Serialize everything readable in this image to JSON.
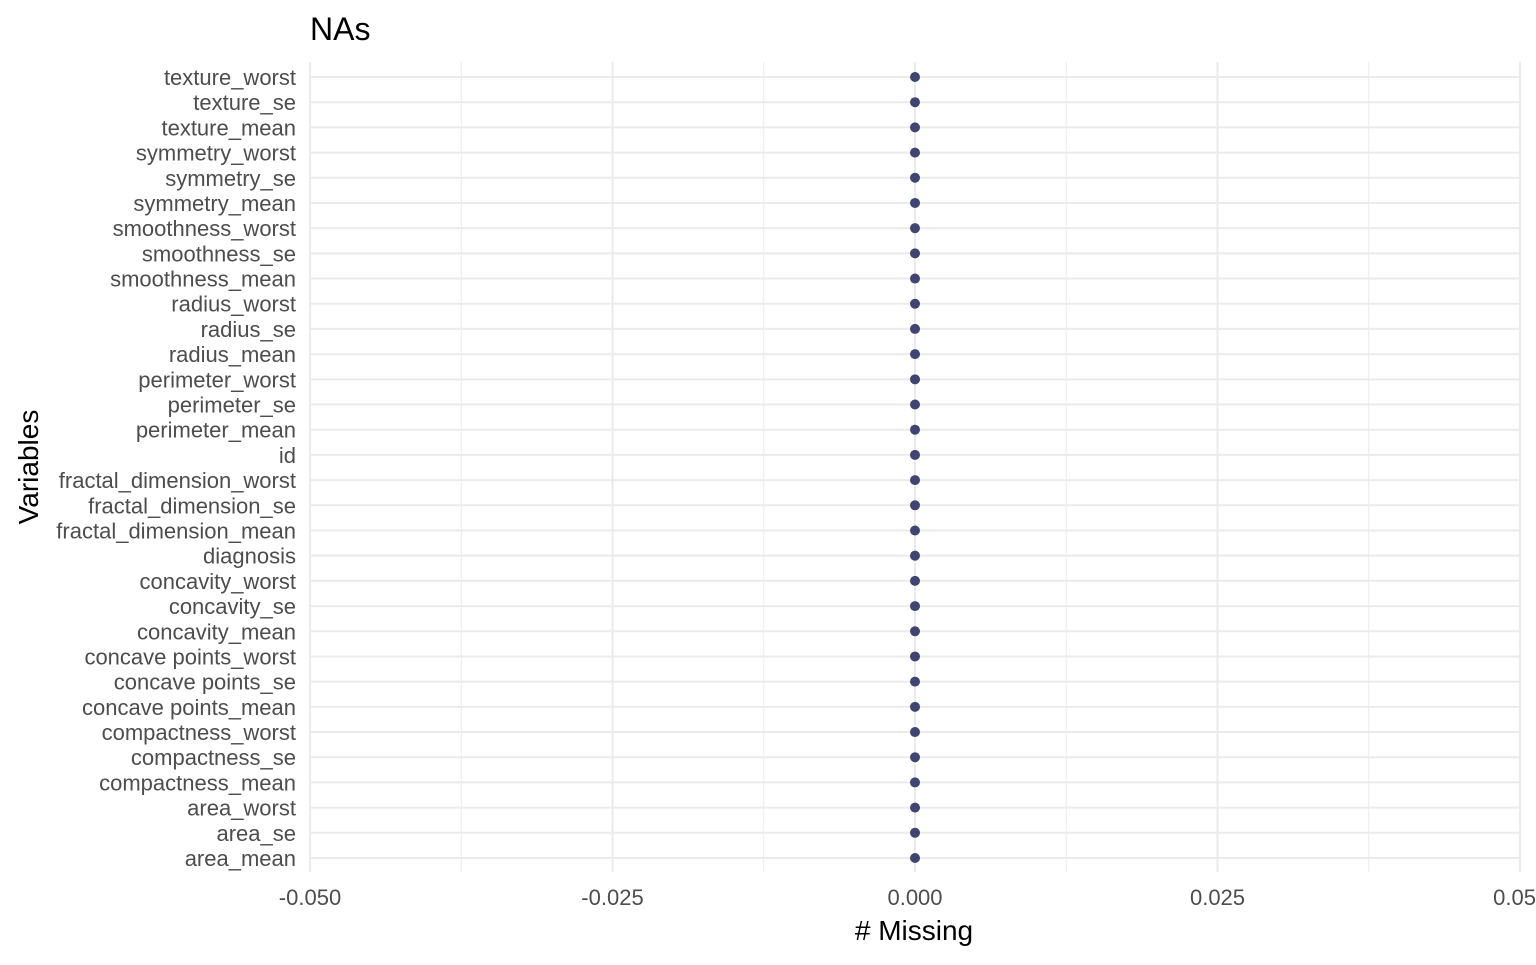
{
  "chart_data": {
    "type": "scatter",
    "title": "NAs",
    "xlabel": "# Missing",
    "ylabel": "Variables",
    "xlim": [
      -0.05,
      0.05
    ],
    "x_ticks": [
      -0.05,
      -0.025,
      0.0,
      0.025,
      0.05
    ],
    "x_tick_labels": [
      "-0.050",
      "-0.025",
      "0.000",
      "0.025",
      "0.05"
    ],
    "grid": true,
    "legend": "none",
    "point_color": "#3f4470",
    "categories": [
      "area_mean",
      "area_se",
      "area_worst",
      "compactness_mean",
      "compactness_se",
      "compactness_worst",
      "concave points_mean",
      "concave points_se",
      "concave points_worst",
      "concavity_mean",
      "concavity_se",
      "concavity_worst",
      "diagnosis",
      "fractal_dimension_mean",
      "fractal_dimension_se",
      "fractal_dimension_worst",
      "id",
      "perimeter_mean",
      "perimeter_se",
      "perimeter_worst",
      "radius_mean",
      "radius_se",
      "radius_worst",
      "smoothness_mean",
      "smoothness_se",
      "smoothness_worst",
      "symmetry_mean",
      "symmetry_se",
      "symmetry_worst",
      "texture_mean",
      "texture_se",
      "texture_worst"
    ],
    "values": [
      0,
      0,
      0,
      0,
      0,
      0,
      0,
      0,
      0,
      0,
      0,
      0,
      0,
      0,
      0,
      0,
      0,
      0,
      0,
      0,
      0,
      0,
      0,
      0,
      0,
      0,
      0,
      0,
      0,
      0,
      0,
      0
    ]
  }
}
